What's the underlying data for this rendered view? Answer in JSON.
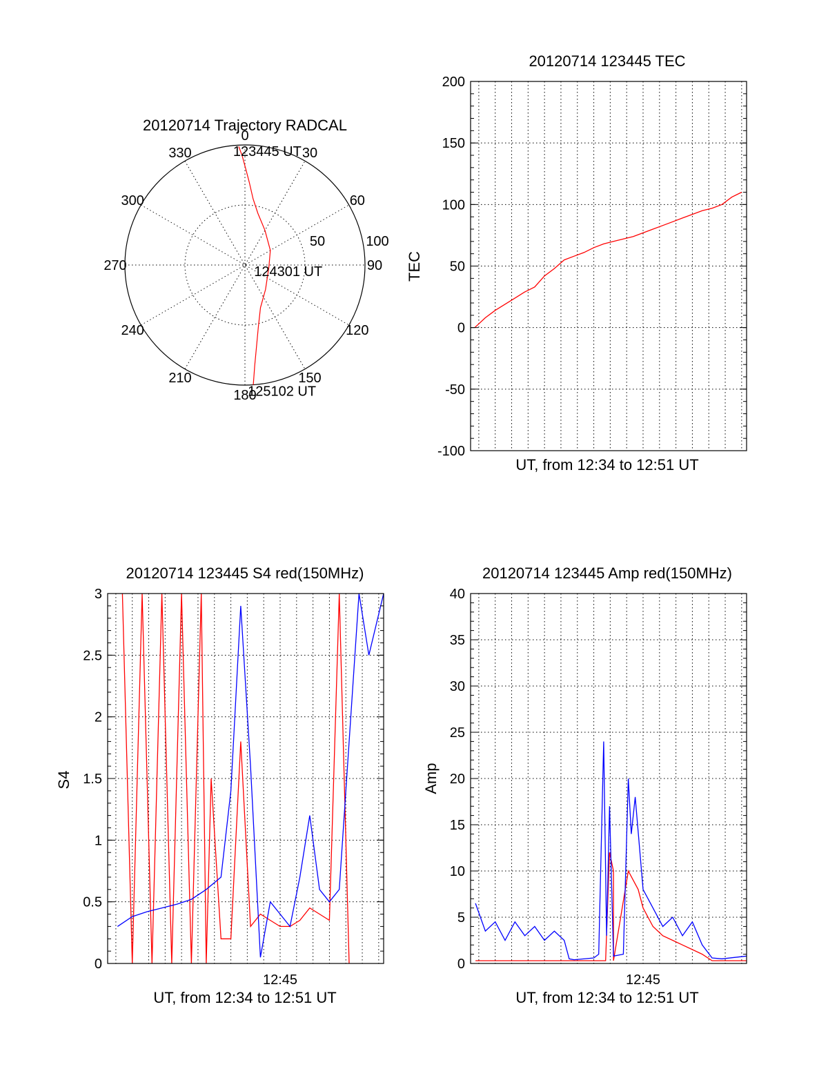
{
  "chart_data": [
    {
      "type": "polar",
      "title": "20120714 Trajectory RADCAL",
      "angle_labels": [
        "0",
        "30",
        "60",
        "90",
        "120",
        "150",
        "180",
        "210",
        "240",
        "270",
        "300",
        "330"
      ],
      "radial_labels": [
        "50",
        "100"
      ],
      "radial_max": 100,
      "annotations": [
        {
          "text": "123445 UT",
          "azimuth": 357,
          "zenith": 90
        },
        {
          "text": "124301 UT",
          "azimuth": 90,
          "zenith": 11
        },
        {
          "text": "125102 UT",
          "azimuth": 176,
          "zenith": 90
        }
      ],
      "series": [
        {
          "color": "#ff0000",
          "azimuth": [
            357.0,
            358.5,
            0.5,
            3.0,
            7.0,
            14.0,
            30.0,
            60.0,
            95.0,
            140.0,
            160.0,
            168.0,
            172.0,
            174.5,
            176.0
          ],
          "zenith": [
            89.0,
            82.0,
            72.0,
            62.0,
            50.0,
            40.0,
            30.0,
            22.0,
            18.0,
            24.0,
            34.0,
            48.0,
            62.0,
            76.0,
            90.0
          ]
        }
      ],
      "grid": true
    },
    {
      "type": "line",
      "title": "20120714 123445 TEC",
      "xlabel": "UT, from 12:34 to 12:51 UT",
      "ylabel": "TEC",
      "xlim": [
        12.575,
        12.855
      ],
      "ylim": [
        -100,
        200
      ],
      "yticks": [
        -100,
        -50,
        0,
        50,
        100,
        150,
        200
      ],
      "grid": true,
      "series": [
        {
          "color": "#ff0000",
          "x": [
            12.5792,
            12.59,
            12.6,
            12.61,
            12.62,
            12.63,
            12.64,
            12.65,
            12.66,
            12.67,
            12.68,
            12.69,
            12.7,
            12.71,
            12.72,
            12.73,
            12.74,
            12.75,
            12.76,
            12.77,
            12.78,
            12.79,
            12.8,
            12.81,
            12.82,
            12.83,
            12.84,
            12.85
          ],
          "y": [
            0,
            8,
            14,
            19,
            24,
            29,
            33,
            42,
            48,
            55,
            58,
            61,
            65,
            68,
            70,
            72,
            74,
            77,
            80,
            83,
            86,
            89,
            92,
            95,
            97,
            100,
            106,
            110
          ]
        }
      ]
    },
    {
      "type": "line",
      "title": "20120714 123445 S4 red(150MHz)",
      "xlabel": "UT, from 12:34 to 12:51 UT",
      "ylabel": "S4",
      "xlim": [
        12.575,
        12.855
      ],
      "ylim": [
        0,
        3
      ],
      "yticks": [
        "0",
        "0.5",
        "1",
        "1.5",
        "2",
        "2.5",
        "3"
      ],
      "xticks": [
        {
          "value": 12.75,
          "label": "12:45"
        }
      ],
      "grid": true,
      "series": [
        {
          "color": "#ff0000",
          "x": [
            12.59,
            12.6,
            12.61,
            12.62,
            12.63,
            12.64,
            12.65,
            12.66,
            12.67,
            12.675,
            12.68,
            12.69,
            12.7,
            12.71,
            12.72,
            12.73,
            12.74,
            12.75,
            12.76,
            12.77,
            12.78,
            12.79,
            12.8,
            12.81,
            12.82
          ],
          "y": [
            3.0,
            0.0,
            3.0,
            0.0,
            3.0,
            0.0,
            3.0,
            0.0,
            3.0,
            0.0,
            1.5,
            0.2,
            0.2,
            1.8,
            0.3,
            0.4,
            0.35,
            0.3,
            0.3,
            0.35,
            0.45,
            0.4,
            0.35,
            3.0,
            0.0
          ]
        },
        {
          "color": "#0000ff",
          "x": [
            12.585,
            12.6,
            12.615,
            12.63,
            12.645,
            12.66,
            12.675,
            12.69,
            12.7,
            12.71,
            12.72,
            12.73,
            12.74,
            12.75,
            12.76,
            12.77,
            12.78,
            12.79,
            12.8,
            12.81,
            12.82,
            12.83,
            12.84,
            12.855
          ],
          "y": [
            0.3,
            0.38,
            0.42,
            0.45,
            0.48,
            0.52,
            0.6,
            0.7,
            1.4,
            2.9,
            1.6,
            0.05,
            0.5,
            0.4,
            0.3,
            0.7,
            1.2,
            0.6,
            0.5,
            0.6,
            1.8,
            3.0,
            2.5,
            3.0
          ]
        }
      ]
    },
    {
      "type": "line",
      "title": "20120714 123445 Amp red(150MHz)",
      "xlabel": "UT, from 12:34 to 12:51 UT",
      "ylabel": "Amp",
      "xlim": [
        12.575,
        12.855
      ],
      "ylim": [
        0,
        40
      ],
      "yticks": [
        0,
        5,
        10,
        15,
        20,
        25,
        30,
        35,
        40
      ],
      "xticks": [
        {
          "value": 12.75,
          "label": "12:45"
        }
      ],
      "grid": true,
      "series": [
        {
          "color": "#ff0000",
          "x": [
            12.58,
            12.63,
            12.68,
            12.7,
            12.712,
            12.716,
            12.72,
            12.72,
            12.735,
            12.745,
            12.75,
            12.76,
            12.77,
            12.78,
            12.79,
            12.8,
            12.81,
            12.82,
            12.855
          ],
          "y": [
            0.3,
            0.3,
            0.3,
            0.3,
            0.3,
            12,
            10,
            0.3,
            10,
            8,
            6,
            4,
            3,
            2.5,
            2,
            1.5,
            1,
            0.3,
            0.3
          ]
        },
        {
          "color": "#0000ff",
          "x": [
            12.58,
            12.59,
            12.6,
            12.61,
            12.62,
            12.63,
            12.64,
            12.65,
            12.66,
            12.67,
            12.675,
            12.68,
            12.7,
            12.705,
            12.71,
            12.713,
            12.716,
            12.72,
            12.73,
            12.735,
            12.738,
            12.742,
            12.75,
            12.76,
            12.77,
            12.78,
            12.79,
            12.8,
            12.81,
            12.82,
            12.83,
            12.855
          ],
          "y": [
            6.5,
            3.5,
            4.5,
            2.5,
            4.5,
            3.0,
            4.0,
            2.5,
            3.5,
            2.5,
            0.5,
            0.4,
            0.6,
            1.0,
            24.0,
            3.0,
            17.0,
            0.8,
            1.0,
            20.0,
            14.0,
            18.0,
            8.0,
            6.0,
            4.0,
            5.0,
            3.0,
            4.5,
            2.0,
            0.6,
            0.5,
            0.8
          ]
        }
      ]
    }
  ]
}
